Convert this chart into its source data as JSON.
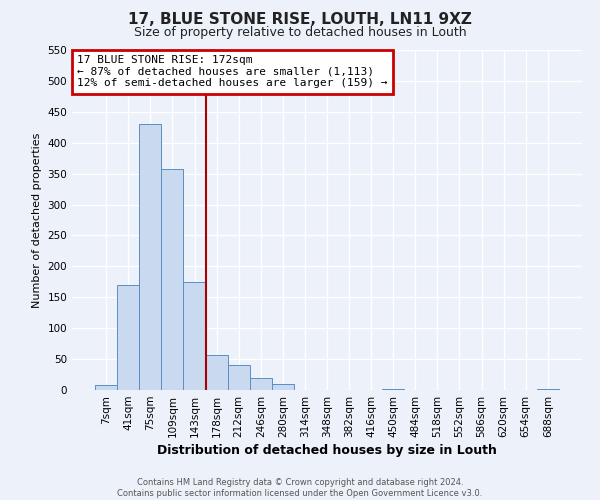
{
  "title": "17, BLUE STONE RISE, LOUTH, LN11 9XZ",
  "subtitle": "Size of property relative to detached houses in Louth",
  "xlabel": "Distribution of detached houses by size in Louth",
  "ylabel": "Number of detached properties",
  "bar_labels": [
    "7sqm",
    "41sqm",
    "75sqm",
    "109sqm",
    "143sqm",
    "178sqm",
    "212sqm",
    "246sqm",
    "280sqm",
    "314sqm",
    "348sqm",
    "382sqm",
    "416sqm",
    "450sqm",
    "484sqm",
    "518sqm",
    "552sqm",
    "586sqm",
    "620sqm",
    "654sqm",
    "688sqm"
  ],
  "bar_values": [
    8,
    170,
    430,
    357,
    175,
    57,
    40,
    19,
    10,
    0,
    0,
    0,
    0,
    1,
    0,
    0,
    0,
    0,
    0,
    0,
    1
  ],
  "bar_color": "#c9d9f0",
  "bar_edge_color": "#5b8ec4",
  "vline_color": "#aa0000",
  "ylim": [
    0,
    550
  ],
  "yticks": [
    0,
    50,
    100,
    150,
    200,
    250,
    300,
    350,
    400,
    450,
    500,
    550
  ],
  "annotation_title": "17 BLUE STONE RISE: 172sqm",
  "annotation_line1": "← 87% of detached houses are smaller (1,113)",
  "annotation_line2": "12% of semi-detached houses are larger (159) →",
  "annotation_box_color": "#cc0000",
  "footer1": "Contains HM Land Registry data © Crown copyright and database right 2024.",
  "footer2": "Contains public sector information licensed under the Open Government Licence v3.0.",
  "background_color": "#edf2fa",
  "grid_color": "#ffffff",
  "title_fontsize": 11,
  "subtitle_fontsize": 9,
  "xlabel_fontsize": 9,
  "ylabel_fontsize": 8,
  "tick_fontsize": 7.5,
  "annotation_fontsize": 8,
  "footer_fontsize": 6
}
